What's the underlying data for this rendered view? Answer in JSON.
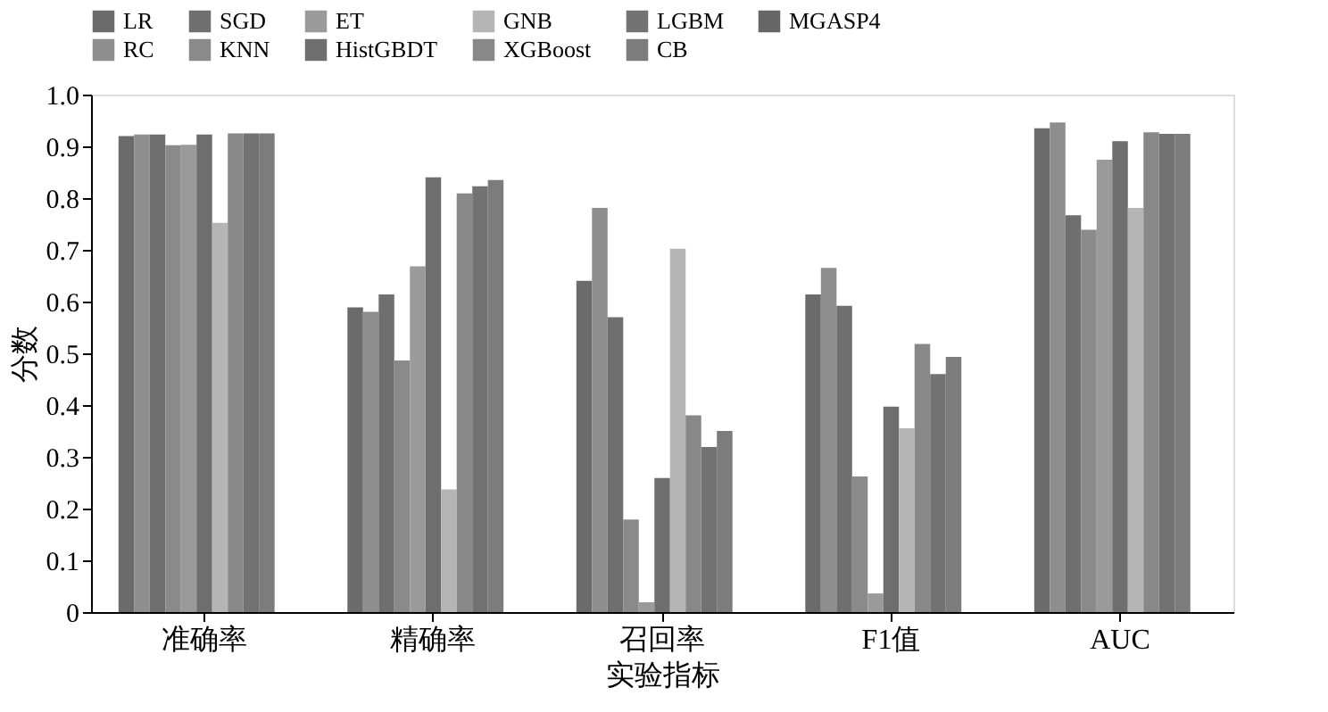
{
  "chart_data": {
    "type": "bar",
    "xlabel": "实验指标",
    "ylabel": "分数",
    "categories": [
      "准确率",
      "精确率",
      "召回率",
      "F1值",
      "AUC"
    ],
    "series": [
      {
        "name": "LR",
        "color": "#6b6b6b",
        "values": [
          0.92,
          0.589,
          0.64,
          0.614,
          0.935
        ]
      },
      {
        "name": "RC",
        "color": "#8e8e8e",
        "values": [
          0.923,
          0.58,
          0.781,
          0.665,
          0.946
        ]
      },
      {
        "name": "SGD",
        "color": "#6f6f6f",
        "values": [
          0.923,
          0.614,
          0.57,
          0.592,
          0.767
        ]
      },
      {
        "name": "KNN",
        "color": "#8a8a8a",
        "values": [
          0.902,
          0.486,
          0.179,
          0.262,
          0.739
        ]
      },
      {
        "name": "ET",
        "color": "#9a9a9a",
        "values": [
          0.903,
          0.668,
          0.019,
          0.036,
          0.874
        ]
      },
      {
        "name": "HistGBDT",
        "color": "#6e6e6e",
        "values": [
          0.923,
          0.84,
          0.259,
          0.397,
          0.91
        ]
      },
      {
        "name": "GNB",
        "color": "#b5b5b5",
        "values": [
          0.752,
          0.237,
          0.702,
          0.355,
          0.781
        ]
      },
      {
        "name": "XGBoost",
        "color": "#888888",
        "values": [
          0.925,
          0.809,
          0.38,
          0.518,
          0.927
        ]
      },
      {
        "name": "LGBM",
        "color": "#727272",
        "values": [
          0.925,
          0.823,
          0.319,
          0.46,
          0.924
        ]
      },
      {
        "name": "CB",
        "color": "#7c7c7c",
        "values": [
          0.925,
          0.835,
          0.35,
          0.493,
          0.924
        ]
      },
      {
        "name": "MGASP4",
        "color": "#666666",
        "values": [
          null,
          null,
          null,
          null,
          null
        ]
      }
    ],
    "ylim": [
      0,
      1
    ],
    "yticks": [
      0,
      0.1,
      0.2,
      0.3,
      0.4,
      0.5,
      0.6,
      0.7,
      0.8,
      0.9,
      {
        "value": 1,
        "label": "1.0"
      }
    ],
    "legend": "top",
    "grid": false
  }
}
